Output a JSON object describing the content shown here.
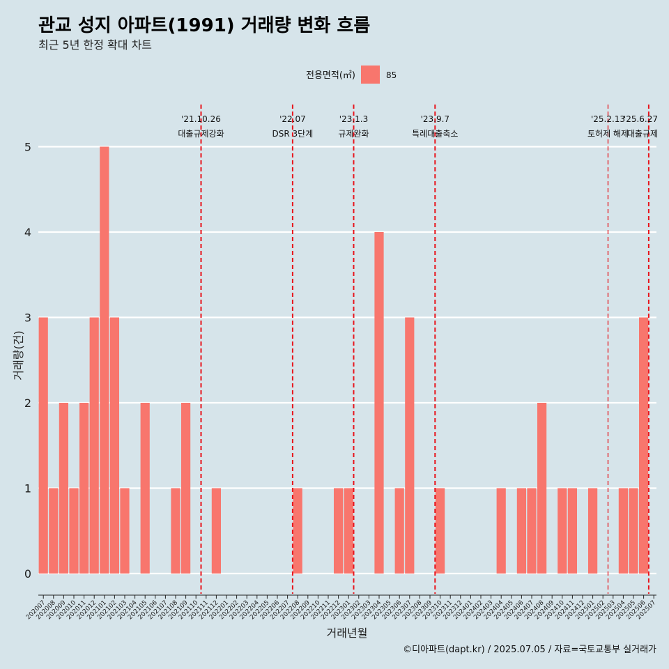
{
  "chart_data": {
    "type": "bar",
    "title": "관교 성지 아파트(1991) 거래량 변화 흐름",
    "subtitle": "최근 5년 한정 확대 차트",
    "xlabel": "거래년월",
    "ylabel": "거래량(건)",
    "caption": "©디아파트(dapt.kr) / 2025.07.05 / 자료=국토교통부 실거래가",
    "legend": {
      "title": "전용면적(㎡)",
      "placement": "top-center",
      "entries": [
        {
          "label": "85",
          "color": "#f8766d"
        }
      ]
    },
    "ylim": [
      0,
      5
    ],
    "yticks": [
      0,
      1,
      2,
      3,
      4,
      5
    ],
    "grid": true,
    "bar_color": "#f8766d",
    "event_color": "#e8141c",
    "categories": [
      "202007",
      "202008",
      "202009",
      "202010",
      "202011",
      "202012",
      "202101",
      "202102",
      "202103",
      "202104",
      "202105",
      "202106",
      "202107",
      "202108",
      "202109",
      "202110",
      "202111",
      "202112",
      "202201",
      "202202",
      "202203",
      "202204",
      "202205",
      "202206",
      "202207",
      "202208",
      "202209",
      "202210",
      "202211",
      "202212",
      "202301",
      "202302",
      "202303",
      "202304",
      "202305",
      "202306",
      "202307",
      "202308",
      "202309",
      "202310",
      "202311",
      "202312",
      "202401",
      "202402",
      "202403",
      "202404",
      "202405",
      "202406",
      "202407",
      "202408",
      "202409",
      "202410",
      "202411",
      "202412",
      "202501",
      "202502",
      "202503",
      "202504",
      "202505",
      "202506",
      "202507"
    ],
    "series": [
      {
        "name": "85",
        "values": [
          3,
          1,
          2,
          1,
          2,
          3,
          5,
          3,
          1,
          0,
          2,
          0,
          0,
          1,
          2,
          0,
          0,
          1,
          0,
          0,
          0,
          0,
          0,
          0,
          0,
          1,
          0,
          0,
          0,
          1,
          1,
          0,
          0,
          4,
          0,
          1,
          3,
          0,
          0,
          1,
          0,
          0,
          0,
          0,
          0,
          1,
          0,
          1,
          1,
          2,
          0,
          1,
          1,
          0,
          1,
          0,
          0,
          1,
          1,
          3,
          0
        ]
      }
    ],
    "events": [
      {
        "date": "'21.10.26",
        "label": "대출규제강화",
        "at": "202110"
      },
      {
        "date": "'22.07",
        "label": "DSR 3단계",
        "at": "202207"
      },
      {
        "date": "'23.1.3",
        "label": "규제완화",
        "at": "202301"
      },
      {
        "date": "'23.9.7",
        "label": "특례대출축소",
        "at": "202309"
      },
      {
        "date": "'25.2.13",
        "label": "토허제 해제",
        "at": "202502"
      },
      {
        "date": "'25.6.27",
        "label": "대출규제",
        "at": "202506"
      }
    ]
  }
}
